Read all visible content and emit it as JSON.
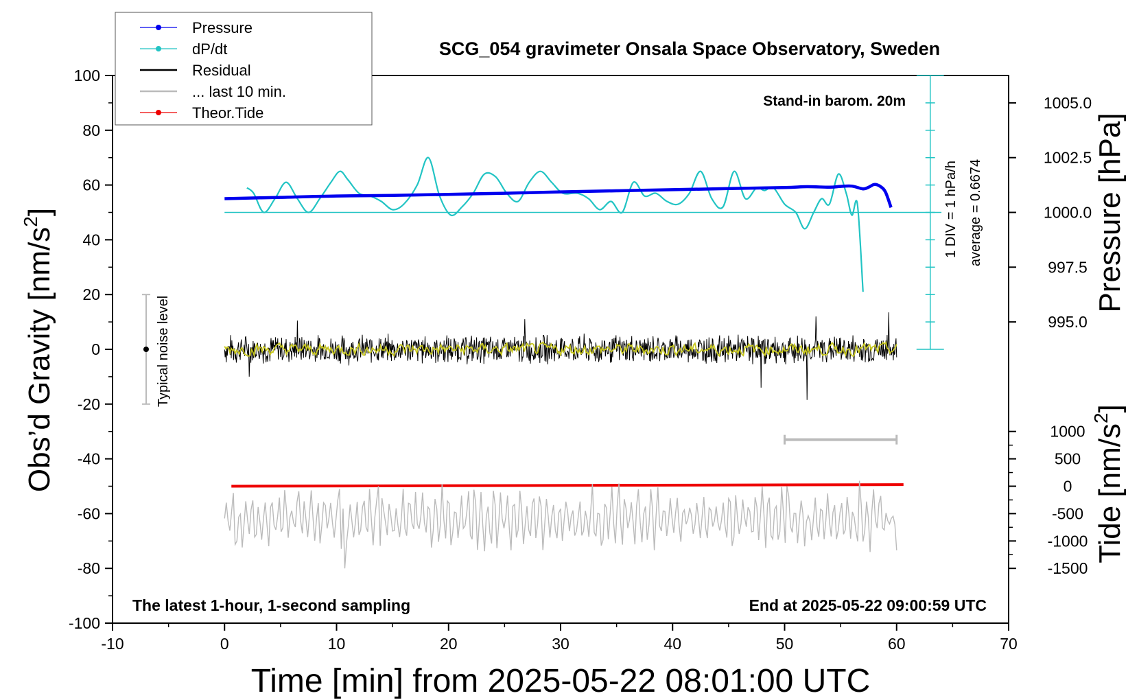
{
  "chart_data": {
    "type": "line",
    "title": "SCG_054 gravimeter Onsala Space Observatory, Sweden",
    "xlabel": "Time [min] from 2025-05-22 08:01:00 UTC",
    "ylabel": "Obs’d Gravity [nm/s²]",
    "ylabel_main": "Obs’d Gravity [nm/s",
    "ylabel_sup": "2",
    "ylabel_tail": "]",
    "y2label": "Pressure [hPa]",
    "y3label_main": "Tide [nm/s",
    "y3label_sup": "2",
    "y3label_tail": "]",
    "xlim": [
      -10,
      70
    ],
    "ylim": [
      -100,
      100
    ],
    "x_ticks": [
      "-10",
      "0",
      "10",
      "20",
      "30",
      "40",
      "50",
      "60",
      "70"
    ],
    "x_tick_values": [
      -10,
      0,
      10,
      20,
      30,
      40,
      50,
      60,
      70
    ],
    "y_ticks": [
      "100",
      "80",
      "60",
      "40",
      "20",
      "0",
      "-20",
      "-40",
      "-60",
      "-80",
      "-100"
    ],
    "y_tick_values": [
      100,
      80,
      60,
      40,
      20,
      0,
      -20,
      -40,
      -60,
      -80,
      -100
    ],
    "pressure_ticks": [
      "1005.0",
      "1002.5",
      "1000.0",
      "997.5",
      "995.0"
    ],
    "pressure_tick_values": [
      1005.0,
      1002.5,
      1000.0,
      997.5,
      995.0
    ],
    "pressure_axis": {
      "value_at_gravity_50": 1000.0,
      "hpa_per_gravity_unit": 0.125
    },
    "tide_ticks": [
      "1000",
      "500",
      "0",
      "-500",
      "-1000",
      "-1500"
    ],
    "tide_tick_values": [
      1000,
      500,
      0,
      -500,
      -1000,
      -1500
    ],
    "tide_axis": {
      "value_at_gravity_-50": 0,
      "nms2_per_gravity_unit": 50
    },
    "annotations": {
      "barometer": "Stand-in barom. 20m",
      "scale_div": "1 DIV = 1 hPa/h",
      "average": "average = 0.6674",
      "noise": "Typical noise level",
      "sampling": "The latest 1-hour, 1-second sampling",
      "end": "End at 2025-05-22 09:00:59 UTC"
    },
    "legend": {
      "position": "top-left",
      "entries": [
        {
          "label": "Pressure",
          "color": "#0000ee",
          "marker": "dot"
        },
        {
          "label": "dP/dt",
          "color": "#22c4c4",
          "marker": "dot"
        },
        {
          "label": "Residual",
          "color": "#000000",
          "marker": "line"
        },
        {
          "label": "... last 10 min.",
          "color": "#bbbbbb",
          "marker": "line"
        },
        {
          "label": "Theor.Tide",
          "color": "#ee0000",
          "marker": "dot"
        }
      ]
    },
    "noise_bar": {
      "x": -7,
      "y": 0,
      "low": -20,
      "high": 20,
      "color": "#bbbbbb"
    },
    "last10_bar": {
      "x_start": 50,
      "x_end": 60,
      "y": -33,
      "color": "#bbbbbb"
    },
    "dpdt_scale": {
      "x": 63,
      "y_bottom": 0,
      "y_top": 100,
      "tick_step": 10,
      "zero_line_y": 50,
      "color": "#22c4c4"
    },
    "series": [
      {
        "name": "Pressure",
        "color": "#0000ee",
        "x": [
          0,
          5,
          10,
          15,
          20,
          25,
          30,
          35,
          40,
          45,
          50,
          52,
          54,
          55,
          56,
          57,
          57.5,
          58,
          58.5,
          59,
          59.5
        ],
        "y": [
          55.0,
          55.5,
          56.0,
          56.2,
          56.6,
          57.0,
          57.5,
          57.9,
          58.3,
          58.7,
          59.1,
          59.4,
          59.2,
          59.5,
          59.6,
          58.6,
          59.2,
          60.2,
          59.6,
          57.5,
          51.8
        ]
      },
      {
        "name": "dP/dt",
        "color": "#22c4c4",
        "x": [
          2,
          2.6,
          3.5,
          4.5,
          5.5,
          6.5,
          7.5,
          8.5,
          9.5,
          10.3,
          11.0,
          12.0,
          13.0,
          14.0,
          15.0,
          16.0,
          17.2,
          18.2,
          19.2,
          20.2,
          21.2,
          22.2,
          23.2,
          24.2,
          25.2,
          26.2,
          27.2,
          28.2,
          29.2,
          30.2,
          31.5,
          32.5,
          33.5,
          34.5,
          35.5,
          36.5,
          37.5,
          38.5,
          39.5,
          40.5,
          41.5,
          42.5,
          43.5,
          44.5,
          45.5,
          46.5,
          47.5,
          48.2,
          49.0,
          50.0,
          51.0,
          51.8,
          52.6,
          53.3,
          54.0,
          54.8,
          55.5,
          56.0,
          56.5,
          57.0
        ],
        "y": [
          59,
          57,
          50,
          55,
          61,
          55,
          50,
          55,
          61,
          65,
          62,
          57,
          56,
          54,
          51,
          53,
          60,
          70,
          56,
          49,
          52,
          57,
          64,
          63,
          57,
          54,
          61,
          65,
          61,
          57,
          57,
          55,
          51,
          54,
          50,
          61,
          56,
          57,
          54,
          53,
          57,
          65,
          55,
          52,
          65,
          55,
          59,
          58,
          59,
          53,
          50,
          44,
          50,
          55,
          53,
          64,
          57,
          49,
          53,
          21
        ]
      },
      {
        "name": "Residual",
        "color": "#000000",
        "x": [
          0,
          60
        ],
        "noise_amplitude": 5,
        "spikes": [
          {
            "x": 52.0,
            "y": -18.5
          },
          {
            "x": 59.3,
            "y": 13.5
          },
          {
            "x": 52.8,
            "y": 12.0
          },
          {
            "x": 47.9,
            "y": -14.0
          },
          {
            "x": 26.8,
            "y": 11.0
          },
          {
            "x": 6.5,
            "y": 10.5
          },
          {
            "x": 2.2,
            "y": -10.0
          }
        ]
      },
      {
        "name": "Residual (smoothed)",
        "color": "#c8c820",
        "x": [
          0,
          60
        ],
        "noise_amplitude": 1.5
      },
      {
        "name": "Theor.Tide",
        "color": "#ee0000",
        "x": [
          0,
          60
        ],
        "y": [
          -50.0,
          -49.4
        ]
      },
      {
        "name": "... last 10 min.",
        "color": "#bbbbbb",
        "x_span": [
          0,
          60
        ],
        "peaks": [
          {
            "x": 10.2,
            "y": -51
          },
          {
            "x": 10.7,
            "y": -80
          },
          {
            "x": 13.8,
            "y": -50
          },
          {
            "x": 35.2,
            "y": -49
          },
          {
            "x": 50.2,
            "y": -50
          },
          {
            "x": 56.7,
            "y": -48
          },
          {
            "x": 57.6,
            "y": -74
          }
        ],
        "base": -62,
        "amplitude": 9
      }
    ]
  }
}
